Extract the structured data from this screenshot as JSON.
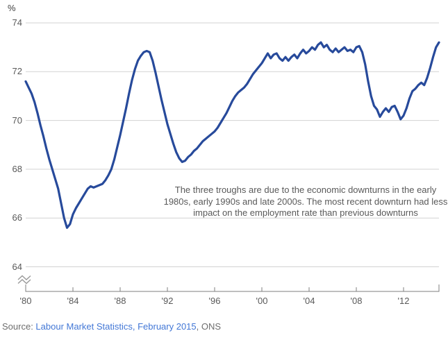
{
  "chart_data": {
    "type": "line",
    "unit_label": "%",
    "x_start_year": 1980,
    "x_step_years": 0.25,
    "xlim": [
      1980,
      2015
    ],
    "ylim": [
      64,
      74
    ],
    "grid": "horizontal-only",
    "legend": "none",
    "axis_break_below": 64,
    "y_ticks": [
      74,
      72,
      70,
      68,
      66,
      64
    ],
    "x_tick_years": [
      1980,
      1984,
      1988,
      1992,
      1996,
      2000,
      2004,
      2008,
      2012
    ],
    "x_tick_labels": [
      "'80",
      "'84",
      "'88",
      "'92",
      "'96",
      "'00",
      "'04",
      "'08",
      "'12"
    ],
    "values": [
      71.6,
      71.35,
      71.1,
      70.75,
      70.3,
      69.8,
      69.35,
      68.85,
      68.4,
      68.0,
      67.6,
      67.2,
      66.6,
      66.0,
      65.6,
      65.75,
      66.15,
      66.4,
      66.6,
      66.8,
      67.0,
      67.2,
      67.3,
      67.25,
      67.3,
      67.35,
      67.4,
      67.55,
      67.75,
      68.0,
      68.4,
      68.9,
      69.4,
      69.95,
      70.5,
      71.1,
      71.65,
      72.1,
      72.45,
      72.65,
      72.8,
      72.85,
      72.8,
      72.45,
      71.95,
      71.4,
      70.85,
      70.35,
      69.85,
      69.45,
      69.05,
      68.7,
      68.45,
      68.3,
      68.35,
      68.5,
      68.6,
      68.75,
      68.85,
      69.0,
      69.15,
      69.25,
      69.35,
      69.45,
      69.55,
      69.7,
      69.9,
      70.1,
      70.3,
      70.55,
      70.8,
      71.0,
      71.15,
      71.25,
      71.35,
      71.5,
      71.7,
      71.9,
      72.05,
      72.2,
      72.35,
      72.55,
      72.75,
      72.55,
      72.7,
      72.75,
      72.55,
      72.45,
      72.6,
      72.45,
      72.6,
      72.7,
      72.55,
      72.75,
      72.9,
      72.75,
      72.85,
      73.0,
      72.9,
      73.1,
      73.2,
      73.0,
      73.1,
      72.9,
      72.8,
      72.95,
      72.8,
      72.9,
      73.0,
      72.85,
      72.9,
      72.8,
      73.0,
      73.05,
      72.8,
      72.3,
      71.6,
      71.0,
      70.6,
      70.45,
      70.15,
      70.35,
      70.5,
      70.35,
      70.55,
      70.6,
      70.35,
      70.05,
      70.2,
      70.5,
      70.9,
      71.2,
      71.3,
      71.45,
      71.55,
      71.45,
      71.75,
      72.15,
      72.6,
      73.0,
      73.2
    ]
  },
  "annotation": {
    "text": "The three troughs are due to the economic downturns in the early 1980s, early 1990s and late 2000s. The most recent downturn had less impact on the employment rate than previous downturns"
  },
  "source": {
    "prefix": "Source: ",
    "link_text": "Labour Market Statistics, February 2015",
    "suffix": ", ONS"
  },
  "colors": {
    "line": "#274a9b",
    "grid": "#d2d2d2",
    "axis": "#7f7f7f",
    "tick_label": "#595959",
    "annotation": "#595959",
    "source_text": "#6e6e6e",
    "source_link": "#4277d6"
  }
}
